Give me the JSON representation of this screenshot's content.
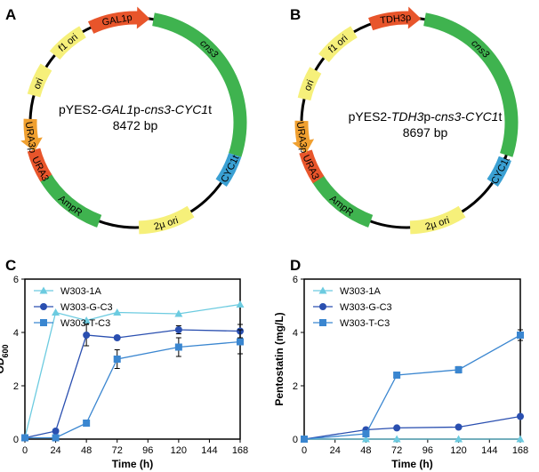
{
  "figure": {
    "panels": {
      "A": {
        "letter": "A",
        "plasmid_name_prefix": "pYES2-",
        "plasmid_name_italic1": "GAL1",
        "plasmid_name_mid": "p-",
        "plasmid_name_italic2": "cns3",
        "plasmid_name_dash": "-",
        "plasmid_name_italic3": "CYC1",
        "plasmid_name_suffix": "t",
        "size": "8472 bp",
        "segments": [
          {
            "label": "GAL1p",
            "color": "#e8552b"
          },
          {
            "label": "cns3",
            "color": "#3fb34f"
          },
          {
            "label": "CYC1t",
            "color": "#3aa0d3"
          },
          {
            "label": "2µ ori",
            "color": "#f6f07a"
          },
          {
            "label": "AmpR",
            "color": "#3fb34f"
          },
          {
            "label": "URA3",
            "color": "#e8552b"
          },
          {
            "label": "URA3p",
            "color": "#f0a030"
          },
          {
            "label": "ori",
            "color": "#f6f07a"
          },
          {
            "label": "f1 ori",
            "color": "#f6f07a"
          }
        ]
      },
      "B": {
        "letter": "B",
        "plasmid_name_prefix": "pYES2-",
        "plasmid_name_italic1": "TDH3",
        "plasmid_name_mid": "p-",
        "plasmid_name_italic2": "cns3",
        "plasmid_name_dash": "-",
        "plasmid_name_italic3": "CYC1",
        "plasmid_name_suffix": "t",
        "size": "8697 bp",
        "segments": [
          {
            "label": "TDH3p",
            "color": "#e8552b"
          },
          {
            "label": "cns3",
            "color": "#3fb34f"
          },
          {
            "label": "CYC1t",
            "color": "#3aa0d3"
          },
          {
            "label": "2µ ori",
            "color": "#f6f07a"
          },
          {
            "label": "AmpR",
            "color": "#3fb34f"
          },
          {
            "label": "URA3",
            "color": "#e8552b"
          },
          {
            "label": "URA3p",
            "color": "#f0a030"
          },
          {
            "label": "ori",
            "color": "#f6f07a"
          },
          {
            "label": "f1 ori",
            "color": "#f6f07a"
          }
        ]
      },
      "C": {
        "letter": "C"
      },
      "D": {
        "letter": "D"
      }
    }
  },
  "chart_data": [
    {
      "panel": "C",
      "type": "line",
      "title": "",
      "xlabel": "Time (h)",
      "ylabel_main": "OD",
      "ylabel_sub": "600",
      "xlim": [
        0,
        168
      ],
      "ylim": [
        0,
        6
      ],
      "xticks": [
        0,
        24,
        48,
        72,
        96,
        120,
        144,
        168
      ],
      "yticks": [
        0,
        2,
        4,
        6
      ],
      "legend_placement": "top-left",
      "series": [
        {
          "name": "W303-1A",
          "marker": "triangle",
          "color": "#6ccbe0",
          "x": [
            0,
            24,
            48,
            72,
            120,
            168
          ],
          "y": [
            0.05,
            4.75,
            4.45,
            4.75,
            4.7,
            5.05
          ],
          "err": [
            0,
            0,
            0,
            0,
            0,
            0
          ]
        },
        {
          "name": "W303-G-C3",
          "marker": "circle",
          "color": "#2a4fb0",
          "x": [
            0,
            24,
            48,
            72,
            120,
            168
          ],
          "y": [
            0.05,
            0.3,
            3.9,
            3.8,
            4.1,
            4.05
          ],
          "err": [
            0,
            0,
            0.4,
            0,
            0.15,
            0.25
          ]
        },
        {
          "name": "W303-T-C3",
          "marker": "square",
          "color": "#3a86d0",
          "x": [
            0,
            24,
            48,
            72,
            120,
            168
          ],
          "y": [
            0.05,
            0.05,
            0.6,
            3.0,
            3.45,
            3.65
          ],
          "err": [
            0,
            0,
            0,
            0.35,
            0.35,
            0.45
          ]
        }
      ]
    },
    {
      "panel": "D",
      "type": "line",
      "title": "",
      "xlabel": "Time (h)",
      "ylabel_main": "Pentostatin (mg/L)",
      "ylabel_sub": "",
      "xlim": [
        0,
        168
      ],
      "ylim": [
        0,
        6
      ],
      "xticks": [
        0,
        24,
        48,
        72,
        96,
        120,
        144,
        168
      ],
      "yticks": [
        0,
        2,
        4,
        6
      ],
      "legend_placement": "top-left",
      "series": [
        {
          "name": "W303-1A",
          "marker": "triangle",
          "color": "#6ccbe0",
          "x": [
            0,
            48,
            72,
            120,
            168
          ],
          "y": [
            0,
            0,
            0,
            0,
            0
          ],
          "err": [
            0,
            0,
            0,
            0,
            0
          ]
        },
        {
          "name": "W303-G-C3",
          "marker": "circle",
          "color": "#2a4fb0",
          "x": [
            0,
            48,
            72,
            120,
            168
          ],
          "y": [
            0,
            0.35,
            0.42,
            0.45,
            0.85
          ],
          "err": [
            0,
            0,
            0,
            0,
            0
          ]
        },
        {
          "name": "W303-T-C3",
          "marker": "square",
          "color": "#3a86d0",
          "x": [
            0,
            48,
            72,
            120,
            168
          ],
          "y": [
            0,
            0.2,
            2.4,
            2.6,
            3.9
          ],
          "err": [
            0,
            0,
            0,
            0.12,
            0.2
          ]
        }
      ]
    }
  ]
}
